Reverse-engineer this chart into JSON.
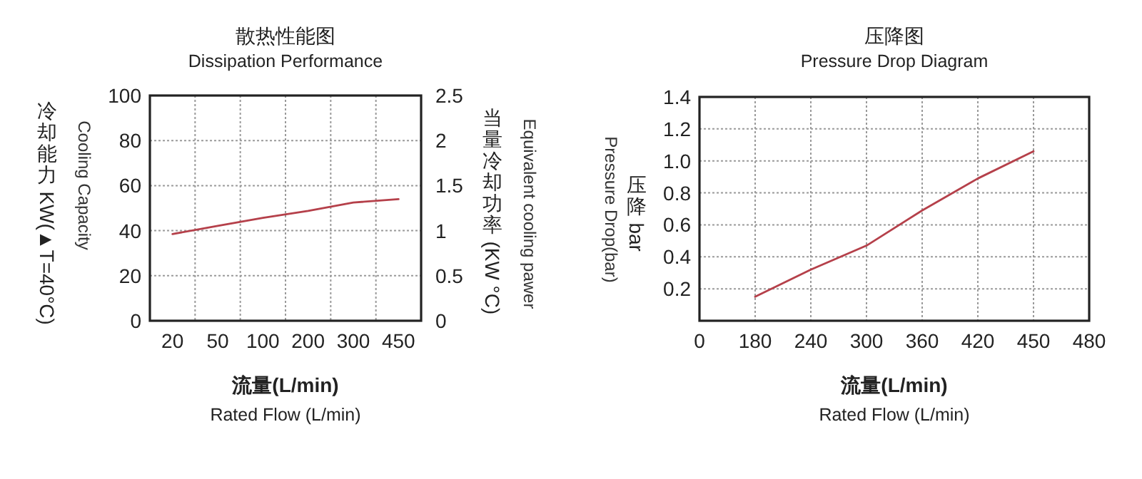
{
  "chart_data": [
    {
      "type": "line",
      "title": "散热性能图",
      "subtitle": "Dissipation Performance",
      "xlabel": "流量(L/min)\nRated Flow (L/min)",
      "ylabel": "冷却能力 KW(▲T=40°C)\nCooling Capacity",
      "y2label": "Equivalent cooling pawer\n当量冷却功率 (KW °C)",
      "categories": [
        "20",
        "50",
        "100",
        "200",
        "300",
        "450"
      ],
      "ylim": [
        0,
        100
      ],
      "yticks": [
        0,
        20,
        40,
        60,
        80,
        100
      ],
      "y2lim": [
        0,
        2.5
      ],
      "y2ticks": [
        0,
        0.5,
        1,
        1.5,
        2,
        2.5
      ],
      "grid": true,
      "series": [
        {
          "color": "#b5404a",
          "values": [
            38.5,
            42.1,
            45.7,
            48.8,
            52.5,
            54
          ]
        }
      ]
    },
    {
      "type": "line",
      "title": "压降图",
      "subtitle": "Pressure Drop Diagram",
      "xlabel": "流量(L/min)\nRated Flow (L/min)",
      "ylabel": "压降 bar\nPressure Drop(bar)",
      "categories": [
        "0",
        "180",
        "240",
        "300",
        "360",
        "420",
        "450",
        "480"
      ],
      "ylim": [
        0,
        1.4
      ],
      "yticks": [
        0.2,
        0.4,
        0.6,
        0.8,
        {
          "value": 1,
          "label": "1.0"
        },
        1.2,
        1.4
      ],
      "grid": true,
      "series": [
        {
          "color": "#b5404a",
          "values": [
            null,
            0.15,
            0.32,
            0.47,
            0.69,
            0.89,
            1.06,
            null
          ]
        }
      ]
    }
  ]
}
